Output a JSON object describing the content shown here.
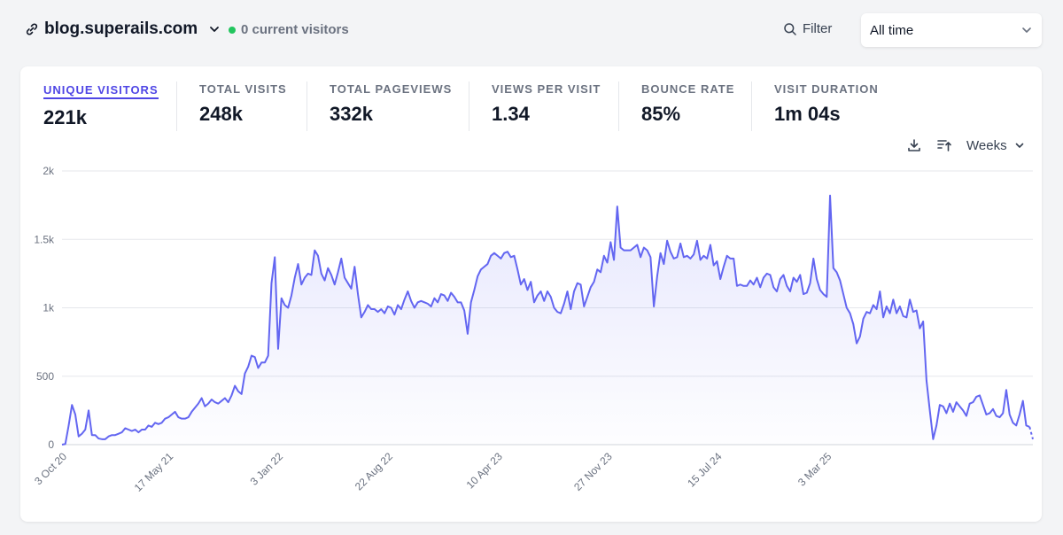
{
  "site": {
    "domain": "blog.superails.com",
    "current_visitors": "0 current visitors"
  },
  "filter": {
    "label": "Filter"
  },
  "period": {
    "label": "All time"
  },
  "stats": [
    {
      "label": "UNIQUE VISITORS",
      "value": "221k"
    },
    {
      "label": "TOTAL VISITS",
      "value": "248k"
    },
    {
      "label": "TOTAL PAGEVIEWS",
      "value": "332k"
    },
    {
      "label": "VIEWS PER VISIT",
      "value": "1.34"
    },
    {
      "label": "BOUNCE RATE",
      "value": "85%"
    },
    {
      "label": "VISIT DURATION",
      "value": "1m 04s"
    }
  ],
  "interval": {
    "label": "Weeks"
  },
  "colors": {
    "line": "#6366f1",
    "fill": "#e0e7ff",
    "grid": "#e5e7eb",
    "active": "#4f46e5"
  },
  "chart_data": {
    "type": "area",
    "series_name": "Unique visitors",
    "ylim": [
      0,
      2000
    ],
    "yticks": [
      {
        "value": 0,
        "label": "0"
      },
      {
        "value": 500,
        "label": "500"
      },
      {
        "value": 1000,
        "label": "1k"
      },
      {
        "value": 1500,
        "label": "1.5k"
      },
      {
        "value": 2000,
        "label": "2k"
      }
    ],
    "xticks": [
      {
        "week": 0,
        "label": "3 Oct 20"
      },
      {
        "week": 32,
        "label": "17 May 21"
      },
      {
        "week": 65,
        "label": "3 Jan 22"
      },
      {
        "week": 98,
        "label": "22 Aug 22"
      },
      {
        "week": 131,
        "label": "10 Apr 23"
      },
      {
        "week": 164,
        "label": "27 Nov 23"
      },
      {
        "week": 197,
        "label": "15 Jul 24"
      },
      {
        "week": 230,
        "label": "3 Mar 25"
      }
    ],
    "values": [
      0,
      5,
      140,
      290,
      220,
      60,
      80,
      110,
      250,
      70,
      70,
      45,
      40,
      40,
      60,
      70,
      70,
      80,
      90,
      120,
      110,
      100,
      110,
      90,
      110,
      110,
      140,
      130,
      160,
      150,
      160,
      190,
      200,
      220,
      240,
      200,
      190,
      190,
      200,
      240,
      270,
      300,
      340,
      280,
      300,
      330,
      310,
      300,
      320,
      340,
      310,
      360,
      430,
      390,
      370,
      520,
      570,
      650,
      640,
      560,
      600,
      600,
      650,
      1180,
      1370,
      700,
      1070,
      1020,
      1000,
      1090,
      1220,
      1320,
      1170,
      1220,
      1250,
      1240,
      1420,
      1380,
      1250,
      1200,
      1290,
      1240,
      1170,
      1260,
      1360,
      1220,
      1180,
      1140,
      1300,
      1100,
      930,
      970,
      1020,
      990,
      990,
      970,
      990,
      960,
      1010,
      1000,
      950,
      1020,
      990,
      1060,
      1120,
      1050,
      1000,
      1040,
      1050,
      1040,
      1030,
      1010,
      1070,
      1040,
      1100,
      1090,
      1050,
      1110,
      1080,
      1040,
      1040,
      980,
      810,
      1040,
      1130,
      1230,
      1280,
      1300,
      1320,
      1380,
      1400,
      1380,
      1360,
      1400,
      1410,
      1370,
      1380,
      1280,
      1170,
      1210,
      1130,
      1190,
      1040,
      1090,
      1120,
      1050,
      1120,
      1080,
      1000,
      970,
      960,
      1030,
      1120,
      990,
      1120,
      1180,
      1170,
      1010,
      1080,
      1150,
      1190,
      1280,
      1260,
      1380,
      1330,
      1480,
      1350,
      1740,
      1440,
      1420,
      1420,
      1420,
      1440,
      1460,
      1370,
      1440,
      1420,
      1370,
      1010,
      1230,
      1400,
      1320,
      1490,
      1410,
      1360,
      1370,
      1470,
      1370,
      1380,
      1360,
      1390,
      1490,
      1350,
      1380,
      1360,
      1460,
      1310,
      1340,
      1210,
      1300,
      1380,
      1360,
      1360,
      1160,
      1170,
      1160,
      1160,
      1200,
      1170,
      1220,
      1150,
      1220,
      1250,
      1240,
      1150,
      1120,
      1210,
      1240,
      1160,
      1120,
      1220,
      1190,
      1240,
      1100,
      1110,
      1180,
      1360,
      1210,
      1130,
      1100,
      1080,
      1820,
      1290,
      1260,
      1200,
      1100,
      1000,
      960,
      880,
      740,
      790,
      920,
      970,
      960,
      1020,
      990,
      1120,
      930,
      1010,
      960,
      1060,
      960,
      1010,
      940,
      930,
      1060,
      970,
      980,
      850,
      900,
      470,
      250,
      40,
      140,
      290,
      280,
      230,
      300,
      240,
      310,
      280,
      250,
      210,
      300,
      310,
      350,
      360,
      290,
      220,
      230,
      260,
      210,
      200,
      230,
      400,
      220,
      160,
      140,
      220,
      320,
      140,
      130,
      40
    ]
  }
}
